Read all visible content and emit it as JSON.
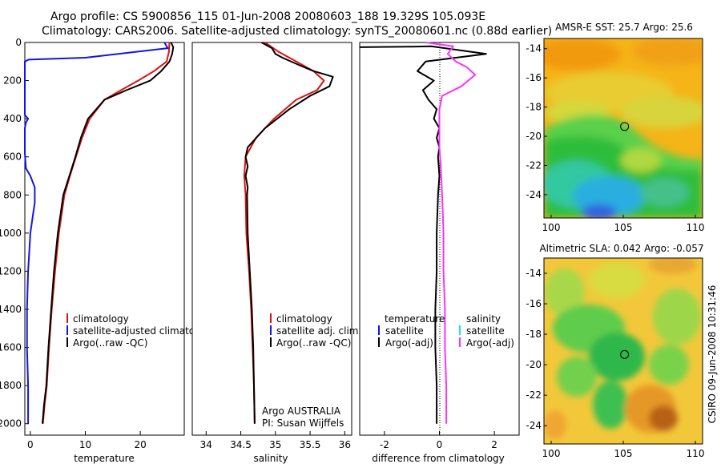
{
  "header": {
    "line1": "Argo profile: CS 5900856_115 01-Jun-2008 20080603_188 19.329S 105.093E",
    "line2": "Climatology: CARS2006. Satellite-adjusted climatology: synTS_20080601.nc (0.88d earlier)"
  },
  "footer": {
    "stamp": "CSIRO 09-Jun-2008 10:31:46"
  },
  "colors": {
    "clim": "#e01010",
    "sat": "#1414e6",
    "argo": "#000000",
    "sat_sal": "#20e0e0",
    "argo_adj_sal": "#ff30ff"
  },
  "chart_data": [
    {
      "type": "line",
      "xlabel": "temperature",
      "xlim": [
        -1,
        28
      ],
      "ylim": [
        2060,
        0
      ],
      "y_reversed": true,
      "xticks": [
        0,
        10,
        20
      ],
      "yticks": [
        0,
        200,
        400,
        600,
        800,
        1000,
        1200,
        1400,
        1600,
        1800,
        2000
      ],
      "legend": [
        "climatology",
        "satellite-adjusted climatology",
        "Argo(..raw -QC)"
      ],
      "series": [
        {
          "name": "climatology",
          "color": "#e01010",
          "x": [
            25.3,
            25.2,
            24.8,
            22.5,
            19.6,
            16.5,
            13.5,
            10.8,
            9.4,
            8.3,
            7.2,
            6.2,
            5.2,
            4.5,
            3.9,
            3.4,
            3.0,
            2.6,
            2.3
          ],
          "y": [
            0,
            50,
            100,
            150,
            200,
            250,
            300,
            400,
            500,
            600,
            700,
            800,
            1000,
            1200,
            1400,
            1600,
            1800,
            1900,
            2000
          ]
        },
        {
          "name": "satellite-adjusted climatology",
          "color": "#1414e6",
          "x": [
            24.4,
            25.0,
            10.0,
            -0.3,
            -1.0,
            -1.0,
            -0.4,
            -0.8,
            -1.0,
            -1.0,
            -0.8,
            0.0,
            0.8,
            0.8,
            0.5,
            0.0,
            -0.4,
            -0.6,
            -0.6,
            -0.4,
            -0.4
          ],
          "y": [
            0,
            30,
            80,
            90,
            100,
            380,
            400,
            420,
            450,
            580,
            660,
            700,
            760,
            840,
            900,
            1000,
            1200,
            1400,
            1600,
            1800,
            2000
          ]
        },
        {
          "name": "Argo(..raw -QC)",
          "color": "#000000",
          "x": [
            25.6,
            26.0,
            25.8,
            25.3,
            23.8,
            21.8,
            17.5,
            13.5,
            10.5,
            9.2,
            8.2,
            7.1,
            6.0,
            5.0,
            4.3,
            3.8,
            3.3,
            2.9,
            2.5,
            2.2
          ],
          "y": [
            0,
            25,
            60,
            100,
            150,
            200,
            250,
            300,
            400,
            500,
            600,
            700,
            800,
            1000,
            1200,
            1400,
            1600,
            1800,
            1900,
            2000
          ]
        }
      ]
    },
    {
      "type": "line",
      "xlabel": "salinity",
      "xlim": [
        33.8,
        36.1
      ],
      "ylim": [
        2060,
        0
      ],
      "y_reversed": true,
      "xticks": [
        34,
        34.5,
        35,
        35.5,
        36
      ],
      "legend": [
        "climatology",
        "satellite adj. clim.",
        "Argo(..raw -QC)"
      ],
      "annotation": [
        "Argo AUSTRALIA",
        "PI: Susan Wijffels"
      ],
      "series": [
        {
          "name": "climatology",
          "color": "#e01010",
          "x": [
            34.85,
            35.05,
            35.3,
            35.55,
            35.7,
            35.6,
            35.3,
            34.98,
            34.72,
            34.57,
            34.55,
            34.57,
            34.58,
            34.62,
            34.65,
            34.67,
            34.69,
            34.7
          ],
          "y": [
            0,
            50,
            100,
            150,
            200,
            250,
            300,
            400,
            500,
            600,
            700,
            800,
            1000,
            1200,
            1400,
            1600,
            1800,
            2000
          ]
        },
        {
          "name": "Argo(..raw -QC)",
          "color": "#000000",
          "x": [
            34.8,
            34.95,
            35.0,
            35.1,
            35.35,
            35.55,
            35.83,
            35.78,
            35.5,
            35.2,
            34.85,
            34.6,
            34.57,
            34.6,
            34.57,
            34.6,
            34.59,
            34.6,
            34.63,
            34.66,
            34.68,
            34.7
          ],
          "y": [
            0,
            30,
            60,
            80,
            120,
            150,
            180,
            230,
            280,
            350,
            450,
            550,
            600,
            650,
            700,
            760,
            800,
            1000,
            1200,
            1400,
            1600,
            2000
          ]
        }
      ]
    },
    {
      "type": "line",
      "xlabel": "difference from climatology",
      "xlim": [
        -2.9,
        2.9
      ],
      "ylim": [
        2060,
        0
      ],
      "y_reversed": true,
      "xticks": [
        -2,
        0,
        2
      ],
      "legend": {
        "temperature": [
          "satellite",
          "Argo(-adj)"
        ],
        "salinity": [
          "satellite",
          "Argo(-adj)"
        ]
      },
      "series": [
        {
          "name": "temperature Argo(-adj)",
          "color": "#000000",
          "x": [
            -3.0,
            -1.0,
            -0.3,
            1.7,
            -0.5,
            -0.8,
            -0.2,
            -0.6,
            -0.4,
            -0.1,
            -0.2,
            0.0,
            -0.1,
            0.0,
            -0.05,
            0.0,
            -0.05,
            -0.1,
            -0.1,
            -0.15,
            -0.15,
            -0.1,
            -0.1
          ],
          "y": [
            25,
            22,
            20,
            60,
            100,
            150,
            200,
            250,
            300,
            350,
            400,
            450,
            500,
            550,
            600,
            700,
            800,
            1000,
            1200,
            1400,
            1600,
            1800,
            2000
          ]
        },
        {
          "name": "salinity Argo(-adj)",
          "color": "#ff30ff",
          "x": [
            -0.5,
            0.5,
            0.3,
            0.6,
            1.0,
            1.3,
            0.8,
            0.1,
            0.0,
            0.0,
            0.0,
            0.05,
            0.1,
            0.15,
            0.15,
            0.2,
            0.2,
            0.25,
            0.25
          ],
          "y": [
            0,
            20,
            60,
            100,
            130,
            170,
            230,
            280,
            350,
            450,
            550,
            650,
            800,
            1000,
            1200,
            1400,
            1600,
            1800,
            2000
          ]
        }
      ]
    }
  ],
  "maps": [
    {
      "title": "AMSR-E SST: 25.7 Argo: 25.6",
      "xticks": [
        100,
        105,
        110
      ],
      "yticks": [
        -14,
        -16,
        -18,
        -20,
        -22,
        -24
      ],
      "xlim": [
        99.5,
        110.5
      ],
      "ylim": [
        -25.6,
        -13.3
      ],
      "marker": [
        105.09,
        -19.33
      ]
    },
    {
      "title": "Altimetric SLA: 0.042 Argo: -0.057",
      "xticks": [
        100,
        105,
        110
      ],
      "yticks": [
        -14,
        -16,
        -18,
        -20,
        -22,
        -24
      ],
      "xlim": [
        99.5,
        110.5
      ],
      "ylim": [
        -25.2,
        -13.0
      ],
      "marker": [
        105.09,
        -19.33
      ]
    }
  ]
}
